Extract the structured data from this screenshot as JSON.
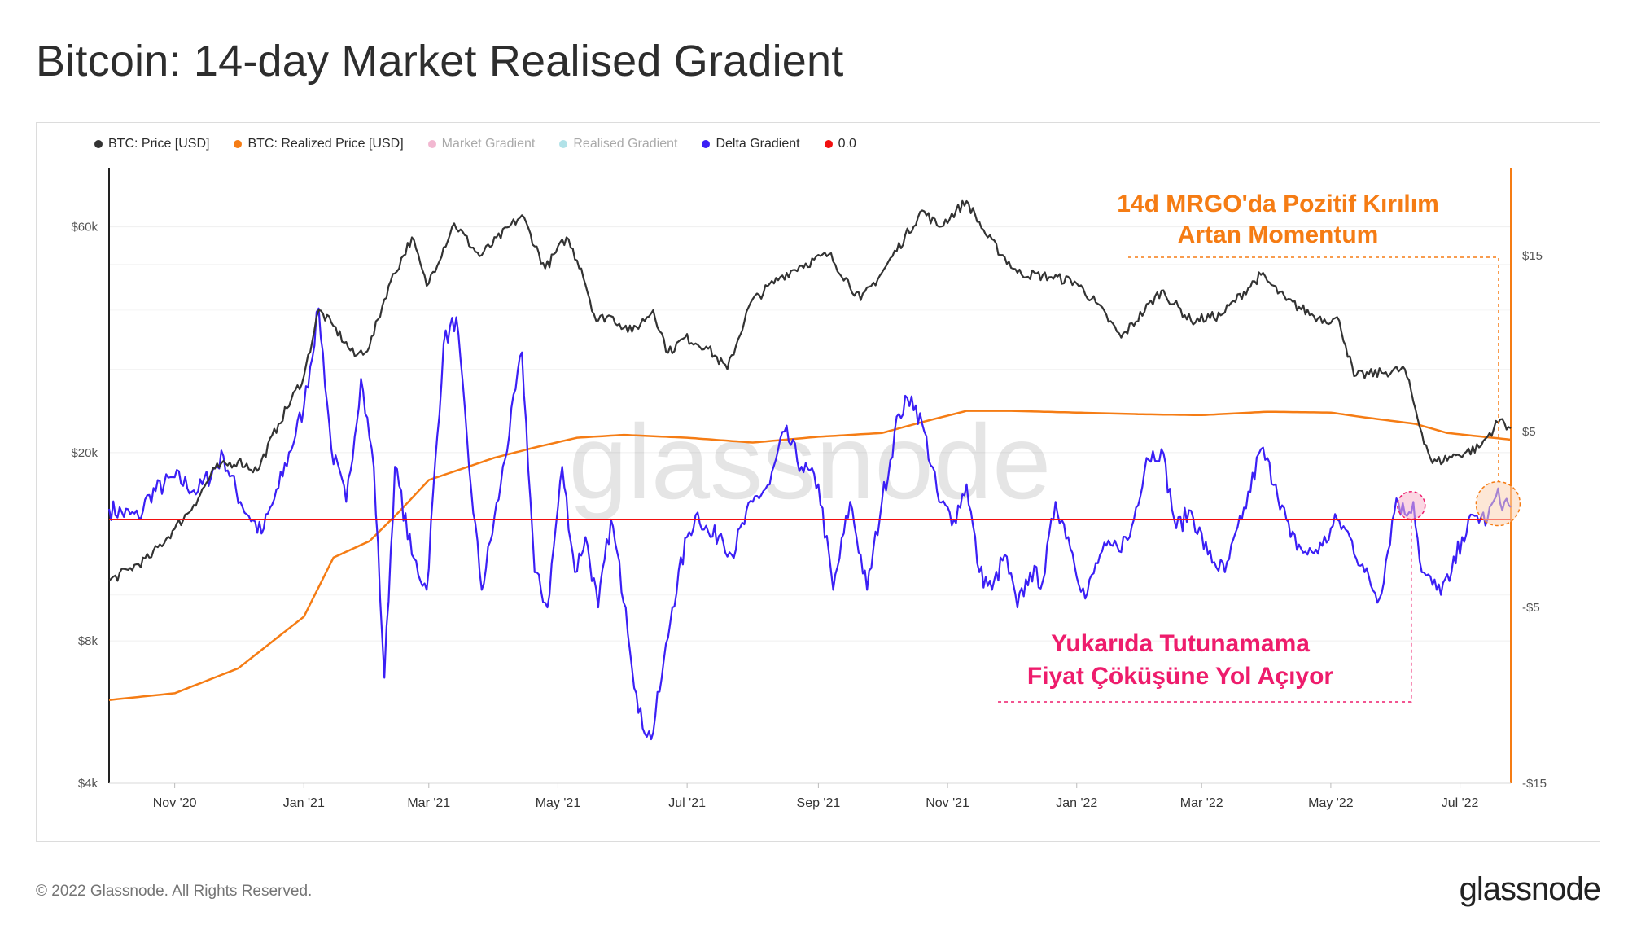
{
  "header": {
    "title": "Bitcoin: 14-day Market Realised Gradient"
  },
  "legend": [
    {
      "label": "BTC: Price [USD]",
      "color": "#333333",
      "faded": false
    },
    {
      "label": "BTC: Realized Price [USD]",
      "color": "#f57c14",
      "faded": false
    },
    {
      "label": "Market Gradient",
      "color": "#e0518f",
      "faded": true
    },
    {
      "label": "Realised Gradient",
      "color": "#3fb8c8",
      "faded": true
    },
    {
      "label": "Delta Gradient",
      "color": "#3b1ff5",
      "faded": false
    },
    {
      "label": "0.0",
      "color": "#f21010",
      "faded": false
    }
  ],
  "footer": {
    "copyright": "© 2022 Glassnode. All Rights Reserved.",
    "brand": "glassnode"
  },
  "chart_data": {
    "type": "line",
    "title": "Bitcoin: 14-day Market Realised Gradient",
    "watermark": "glassnode",
    "x_ticks": [
      "Nov '20",
      "Jan '21",
      "Mar '21",
      "May '21",
      "Jul '21",
      "Sep '21",
      "Nov '21",
      "Jan '22",
      "Mar '22",
      "May '22",
      "Jul '22"
    ],
    "x_range": [
      "2020-10-01",
      "2022-07-25"
    ],
    "y_left": {
      "scale": "log",
      "range": [
        4000,
        80000
      ],
      "ticks": [
        {
          "label": "$4k",
          "value": 4000
        },
        {
          "label": "$8k",
          "value": 8000
        },
        {
          "label": "$20k",
          "value": 20000
        },
        {
          "label": "$60k",
          "value": 60000
        }
      ]
    },
    "y_right": {
      "scale": "linear",
      "range": [
        -15,
        20
      ],
      "ticks": [
        {
          "label": "$15",
          "value": 15
        },
        {
          "label": "$5",
          "value": 5
        },
        {
          "label": "-$5",
          "value": -5
        },
        {
          "label": "-$15",
          "value": -15
        }
      ]
    },
    "series": [
      {
        "name": "BTC: Price [USD]",
        "axis": "left",
        "color": "#333333",
        "points": [
          [
            "2020-10-01",
            10700
          ],
          [
            "2020-10-10",
            11300
          ],
          [
            "2020-10-20",
            12000
          ],
          [
            "2020-11-01",
            13800
          ],
          [
            "2020-11-10",
            15500
          ],
          [
            "2020-11-20",
            18500
          ],
          [
            "2020-12-01",
            19200
          ],
          [
            "2020-12-10",
            18300
          ],
          [
            "2020-12-20",
            23000
          ],
          [
            "2021-01-01",
            29000
          ],
          [
            "2021-01-08",
            40000
          ],
          [
            "2021-01-15",
            37000
          ],
          [
            "2021-01-25",
            32000
          ],
          [
            "2021-02-01",
            33500
          ],
          [
            "2021-02-10",
            45000
          ],
          [
            "2021-02-21",
            57000
          ],
          [
            "2021-02-28",
            45000
          ],
          [
            "2021-03-13",
            61000
          ],
          [
            "2021-03-25",
            52000
          ],
          [
            "2021-04-14",
            63500
          ],
          [
            "2021-04-25",
            49000
          ],
          [
            "2021-05-05",
            57000
          ],
          [
            "2021-05-12",
            49000
          ],
          [
            "2021-05-19",
            38000
          ],
          [
            "2021-05-25",
            39000
          ],
          [
            "2021-06-05",
            36000
          ],
          [
            "2021-06-15",
            40000
          ],
          [
            "2021-06-22",
            32500
          ],
          [
            "2021-06-30",
            35000
          ],
          [
            "2021-07-10",
            33500
          ],
          [
            "2021-07-20",
            30000
          ],
          [
            "2021-07-31",
            41500
          ],
          [
            "2021-08-14",
            47000
          ],
          [
            "2021-08-23",
            49500
          ],
          [
            "2021-09-06",
            52500
          ],
          [
            "2021-09-21",
            42000
          ],
          [
            "2021-10-01",
            48000
          ],
          [
            "2021-10-20",
            65000
          ],
          [
            "2021-10-28",
            60000
          ],
          [
            "2021-11-10",
            68000
          ],
          [
            "2021-11-20",
            57000
          ],
          [
            "2021-12-04",
            48000
          ],
          [
            "2021-12-20",
            47000
          ],
          [
            "2021-12-31",
            46000
          ],
          [
            "2022-01-10",
            41500
          ],
          [
            "2022-01-22",
            35000
          ],
          [
            "2022-02-10",
            44000
          ],
          [
            "2022-02-24",
            38000
          ],
          [
            "2022-03-10",
            39000
          ],
          [
            "2022-03-29",
            47500
          ],
          [
            "2022-04-10",
            42000
          ],
          [
            "2022-04-25",
            38500
          ],
          [
            "2022-05-05",
            38000
          ],
          [
            "2022-05-12",
            29000
          ],
          [
            "2022-05-25",
            29500
          ],
          [
            "2022-06-05",
            30000
          ],
          [
            "2022-06-13",
            22000
          ],
          [
            "2022-06-18",
            19000
          ],
          [
            "2022-06-30",
            19800
          ],
          [
            "2022-07-10",
            20500
          ],
          [
            "2022-07-20",
            23500
          ],
          [
            "2022-07-25",
            22500
          ]
        ]
      },
      {
        "name": "BTC: Realized Price [USD]",
        "axis": "left",
        "color": "#f57c14",
        "points": [
          [
            "2020-10-01",
            6000
          ],
          [
            "2020-11-01",
            6200
          ],
          [
            "2020-12-01",
            7000
          ],
          [
            "2021-01-01",
            9000
          ],
          [
            "2021-01-15",
            12000
          ],
          [
            "2021-02-01",
            13000
          ],
          [
            "2021-02-15",
            15000
          ],
          [
            "2021-03-01",
            17500
          ],
          [
            "2021-04-01",
            19500
          ],
          [
            "2021-04-20",
            20500
          ],
          [
            "2021-05-10",
            21500
          ],
          [
            "2021-06-01",
            21800
          ],
          [
            "2021-07-01",
            21500
          ],
          [
            "2021-08-01",
            21000
          ],
          [
            "2021-09-01",
            21600
          ],
          [
            "2021-10-01",
            22000
          ],
          [
            "2021-10-20",
            23200
          ],
          [
            "2021-11-10",
            24500
          ],
          [
            "2021-12-01",
            24500
          ],
          [
            "2022-01-01",
            24300
          ],
          [
            "2022-02-01",
            24100
          ],
          [
            "2022-03-01",
            24000
          ],
          [
            "2022-04-01",
            24400
          ],
          [
            "2022-05-01",
            24300
          ],
          [
            "2022-05-15",
            23800
          ],
          [
            "2022-06-10",
            23000
          ],
          [
            "2022-06-25",
            22000
          ],
          [
            "2022-07-25",
            21300
          ]
        ]
      },
      {
        "name": "Delta Gradient",
        "axis": "right",
        "color": "#3b1ff5",
        "points": [
          [
            "2020-10-01",
            0.6
          ],
          [
            "2020-10-15",
            0.1
          ],
          [
            "2020-10-20",
            1.4
          ],
          [
            "2020-11-01",
            2.4
          ],
          [
            "2020-11-12",
            1.6
          ],
          [
            "2020-11-24",
            3.6
          ],
          [
            "2020-12-02",
            1.0
          ],
          [
            "2020-12-12",
            -0.8
          ],
          [
            "2020-12-20",
            1.8
          ],
          [
            "2021-01-01",
            6.4
          ],
          [
            "2021-01-08",
            12.0
          ],
          [
            "2021-01-14",
            4.0
          ],
          [
            "2021-01-21",
            1.0
          ],
          [
            "2021-01-28",
            8.0
          ],
          [
            "2021-02-03",
            3.0
          ],
          [
            "2021-02-08",
            -9.0
          ],
          [
            "2021-02-13",
            3.0
          ],
          [
            "2021-02-21",
            -2.0
          ],
          [
            "2021-02-28",
            -4.0
          ],
          [
            "2021-03-08",
            10.0
          ],
          [
            "2021-03-14",
            11.5
          ],
          [
            "2021-03-20",
            3.0
          ],
          [
            "2021-03-26",
            -4.0
          ],
          [
            "2021-04-04",
            2.0
          ],
          [
            "2021-04-14",
            9.5
          ],
          [
            "2021-04-20",
            -3.0
          ],
          [
            "2021-04-26",
            -5.0
          ],
          [
            "2021-05-03",
            3.0
          ],
          [
            "2021-05-09",
            -3.0
          ],
          [
            "2021-05-14",
            -1.0
          ],
          [
            "2021-05-20",
            -5.0
          ],
          [
            "2021-05-26",
            0.0
          ],
          [
            "2021-06-02",
            -5.0
          ],
          [
            "2021-06-08",
            -11.0
          ],
          [
            "2021-06-14",
            -12.5
          ],
          [
            "2021-06-19",
            -9.0
          ],
          [
            "2021-06-24",
            -5.0
          ],
          [
            "2021-07-01",
            -1.0
          ],
          [
            "2021-07-06",
            0.4
          ],
          [
            "2021-07-12",
            -1.0
          ],
          [
            "2021-07-17",
            -0.8
          ],
          [
            "2021-07-22",
            -2.0
          ],
          [
            "2021-08-01",
            1.0
          ],
          [
            "2021-08-09",
            2.0
          ],
          [
            "2021-08-16",
            5.0
          ],
          [
            "2021-08-24",
            3.0
          ],
          [
            "2021-09-01",
            2.0
          ],
          [
            "2021-09-08",
            -4.0
          ],
          [
            "2021-09-16",
            1.0
          ],
          [
            "2021-09-24",
            -4.0
          ],
          [
            "2021-10-01",
            1.0
          ],
          [
            "2021-10-09",
            6.0
          ],
          [
            "2021-10-15",
            7.0
          ],
          [
            "2021-10-21",
            5.0
          ],
          [
            "2021-10-28",
            1.0
          ],
          [
            "2021-11-04",
            0.0
          ],
          [
            "2021-11-10",
            2.0
          ],
          [
            "2021-11-16",
            -3.0
          ],
          [
            "2021-11-22",
            -4.0
          ],
          [
            "2021-11-28",
            -2.0
          ],
          [
            "2021-12-04",
            -5.0
          ],
          [
            "2021-12-10",
            -3.0
          ],
          [
            "2021-12-16",
            -3.5
          ],
          [
            "2021-12-22",
            1.0
          ],
          [
            "2021-12-28",
            -1.0
          ],
          [
            "2022-01-05",
            -4.5
          ],
          [
            "2022-01-12",
            -2.0
          ],
          [
            "2022-01-20",
            -1.5
          ],
          [
            "2022-01-26",
            -1.0
          ],
          [
            "2022-02-03",
            3.5
          ],
          [
            "2022-02-10",
            4.0
          ],
          [
            "2022-02-17",
            -0.5
          ],
          [
            "2022-02-24",
            0.5
          ],
          [
            "2022-03-04",
            -2.0
          ],
          [
            "2022-03-12",
            -3.0
          ],
          [
            "2022-03-20",
            0.0
          ],
          [
            "2022-03-29",
            4.0
          ],
          [
            "2022-04-05",
            2.0
          ],
          [
            "2022-04-12",
            -1.0
          ],
          [
            "2022-04-20",
            -2.0
          ],
          [
            "2022-04-27",
            -1.5
          ],
          [
            "2022-05-04",
            0.0
          ],
          [
            "2022-05-10",
            -1.0
          ],
          [
            "2022-05-17",
            -3.0
          ],
          [
            "2022-05-24",
            -4.5
          ],
          [
            "2022-06-01",
            1.2
          ],
          [
            "2022-06-05",
            0.3
          ],
          [
            "2022-06-09",
            1.0
          ],
          [
            "2022-06-13",
            -3.0
          ],
          [
            "2022-06-20",
            -4.0
          ],
          [
            "2022-06-26",
            -3.5
          ],
          [
            "2022-07-02",
            -1.0
          ],
          [
            "2022-07-08",
            0.2
          ],
          [
            "2022-07-14",
            0.0
          ],
          [
            "2022-07-18",
            1.3
          ],
          [
            "2022-07-22",
            1.0
          ],
          [
            "2022-07-25",
            0.7
          ]
        ]
      },
      {
        "name": "0.0",
        "axis": "right",
        "color": "#f21010",
        "points": [
          [
            "2020-10-01",
            0
          ],
          [
            "2022-07-25",
            0
          ]
        ]
      }
    ],
    "annotations": [
      {
        "id": "breakout",
        "color": "#f57c14",
        "lines": [
          "14d MRGO'da Pozitif Kırılım",
          "Artan Momentum"
        ]
      },
      {
        "id": "failure",
        "color": "#ee1c6c",
        "lines": [
          "Yukarıda Tutunamama",
          "Fiyat Çöküşüne Yol Açıyor"
        ]
      }
    ]
  }
}
